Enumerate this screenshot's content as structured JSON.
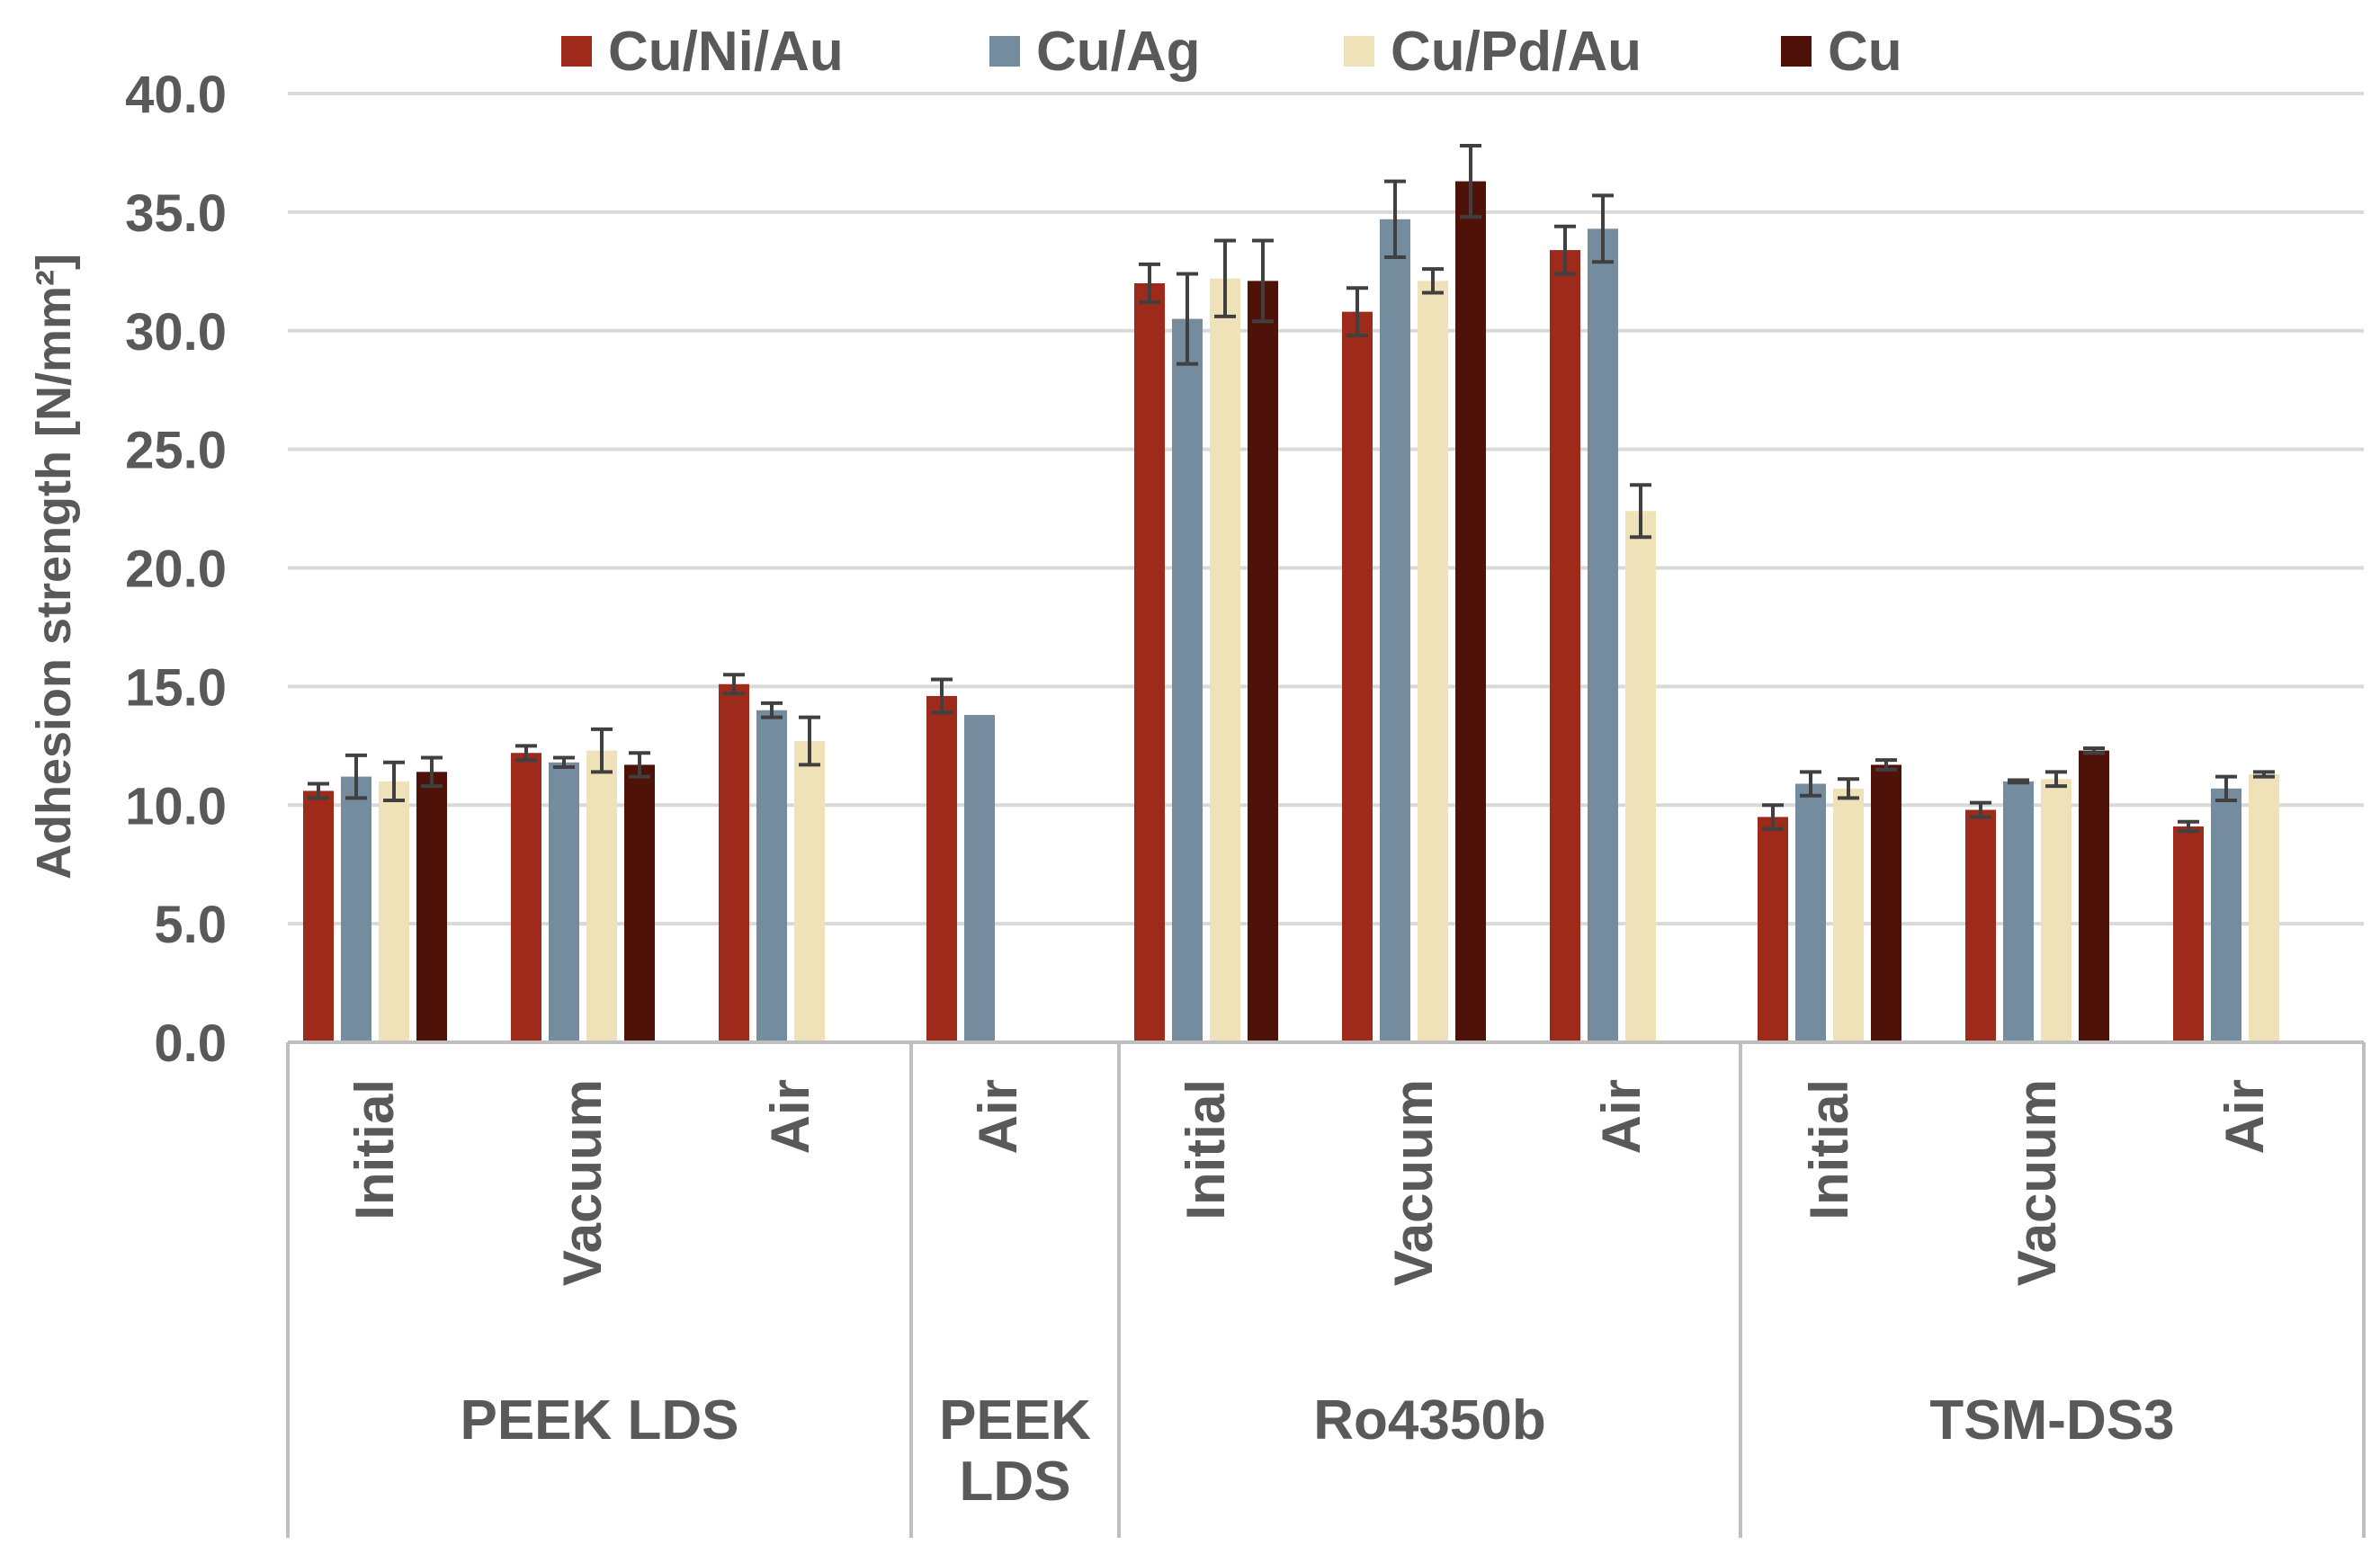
{
  "chart_data": {
    "type": "bar",
    "title": "",
    "xlabel": "",
    "ylabel": "Adhesion strength [N/mm²]",
    "ylim": [
      0,
      40
    ],
    "y_ticks": [
      "0.0",
      "5.0",
      "10.0",
      "15.0",
      "20.0",
      "25.0",
      "30.0",
      "35.0",
      "40.0"
    ],
    "grid": true,
    "legend_position": "top",
    "series": [
      {
        "name": "Cu/Ni/Au",
        "color": "#9e2a1b"
      },
      {
        "name": "Cu/Ag",
        "color": "#748c9e"
      },
      {
        "name": "Cu/Pd/Au",
        "color": "#efe2b8"
      },
      {
        "name": "Cu",
        "color": "#4f1209"
      }
    ],
    "groups": [
      {
        "name": "PEEK LDS",
        "categories": [
          {
            "label": "Initial",
            "values": [
              10.6,
              11.2,
              11.0,
              11.4
            ],
            "errors": [
              0.3,
              0.9,
              0.8,
              0.6
            ]
          },
          {
            "label": "Vacuum",
            "values": [
              12.2,
              11.8,
              12.3,
              11.7
            ],
            "errors": [
              0.3,
              0.2,
              0.9,
              0.5
            ]
          },
          {
            "label": "Air",
            "values": [
              15.1,
              14.0,
              12.7,
              null
            ],
            "errors": [
              0.4,
              0.3,
              1.0,
              null
            ]
          }
        ]
      },
      {
        "name": "PEEK LDS",
        "categories": [
          {
            "label": "Air",
            "values": [
              14.6,
              13.8,
              null,
              null
            ],
            "errors": [
              0.7,
              0,
              null,
              null
            ]
          }
        ]
      },
      {
        "name": "Ro4350b",
        "categories": [
          {
            "label": "Initial",
            "values": [
              32.0,
              30.5,
              32.2,
              32.1
            ],
            "errors": [
              0.8,
              1.9,
              1.6,
              1.7
            ]
          },
          {
            "label": "Vacuum",
            "values": [
              30.8,
              34.7,
              32.1,
              36.3
            ],
            "errors": [
              1.0,
              1.6,
              0.5,
              1.5
            ]
          },
          {
            "label": "Air",
            "values": [
              33.4,
              34.3,
              22.4,
              null
            ],
            "errors": [
              1.0,
              1.4,
              1.1,
              null
            ]
          }
        ]
      },
      {
        "name": "TSM-DS3",
        "categories": [
          {
            "label": "Initial",
            "values": [
              9.5,
              10.9,
              10.7,
              11.7
            ],
            "errors": [
              0.5,
              0.5,
              0.4,
              0.2
            ]
          },
          {
            "label": "Vacuum",
            "values": [
              9.8,
              11.0,
              11.1,
              12.3
            ],
            "errors": [
              0.3,
              0.05,
              0.3,
              0.1
            ]
          },
          {
            "label": "Air",
            "values": [
              9.1,
              10.7,
              11.3,
              null
            ],
            "errors": [
              0.2,
              0.5,
              0.1,
              null
            ]
          }
        ]
      }
    ]
  }
}
